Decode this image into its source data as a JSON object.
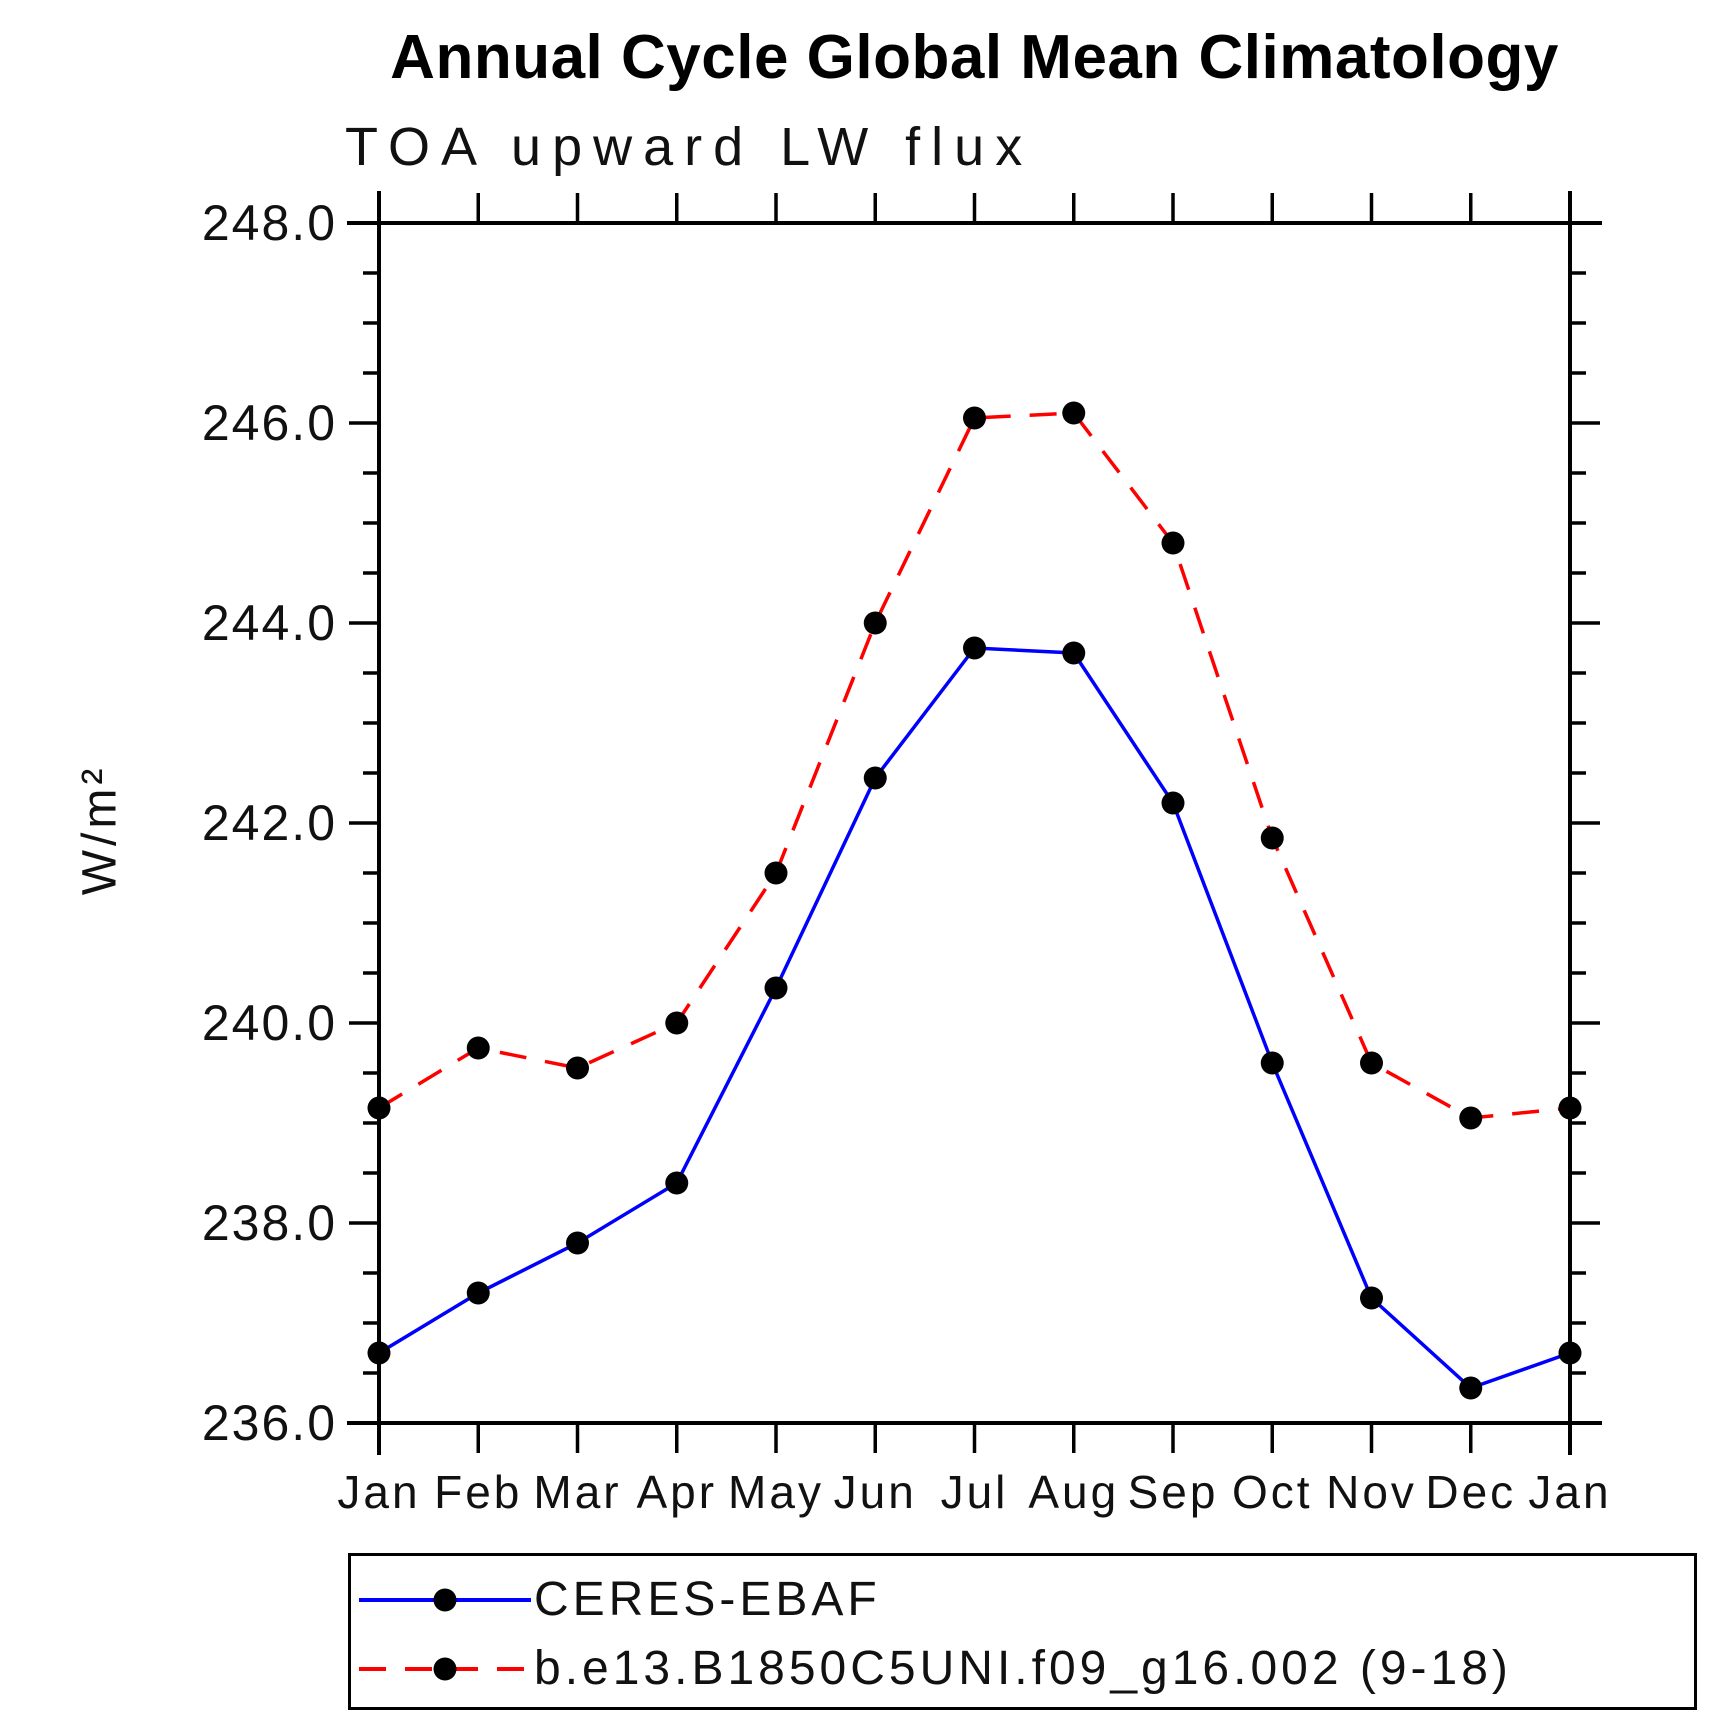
{
  "title": "Annual Cycle Global Mean Climatology",
  "subtitle": "TOA upward LW flux",
  "ylabel": "W/m²",
  "legend": {
    "items": [
      {
        "label": "CERES-EBAF",
        "color": "#0000ff",
        "style": "solid"
      },
      {
        "label": "b.e13.B1850C5UNI.f09_g16.002 (9-18)",
        "color": "#ff0000",
        "style": "dashed"
      }
    ]
  },
  "chart_data": {
    "type": "line",
    "title": "Annual Cycle Global Mean Climatology",
    "subtitle": "TOA upward LW flux",
    "xlabel": "",
    "ylabel": "W/m²",
    "categories": [
      "Jan",
      "Feb",
      "Mar",
      "Apr",
      "May",
      "Jun",
      "Jul",
      "Aug",
      "Sep",
      "Oct",
      "Nov",
      "Dec",
      "Jan"
    ],
    "series": [
      {
        "name": "CERES-EBAF",
        "color": "#0000ff",
        "line_style": "solid",
        "marker": "circle",
        "marker_color": "#000000",
        "values": [
          236.7,
          237.3,
          237.8,
          238.4,
          240.35,
          242.45,
          243.75,
          243.7,
          242.2,
          239.6,
          237.25,
          236.35,
          236.7
        ]
      },
      {
        "name": "b.e13.B1850C5UNI.f09_g16.002 (9-18)",
        "color": "#ff0000",
        "line_style": "dashed",
        "marker": "circle",
        "marker_color": "#000000",
        "values": [
          239.15,
          239.75,
          239.55,
          240.0,
          241.5,
          244.0,
          246.05,
          246.1,
          244.8,
          241.85,
          239.6,
          239.05,
          239.15
        ]
      }
    ],
    "ylim": [
      236.0,
      248.0
    ],
    "ytick_major": 2.0,
    "ytick_minor": 0.5,
    "ytick_labels": [
      "236.0",
      "238.0",
      "240.0",
      "242.0",
      "244.0",
      "246.0",
      "248.0"
    ],
    "grid": false,
    "marker_size": 11.5,
    "legend_position": "bottom-left-box"
  }
}
